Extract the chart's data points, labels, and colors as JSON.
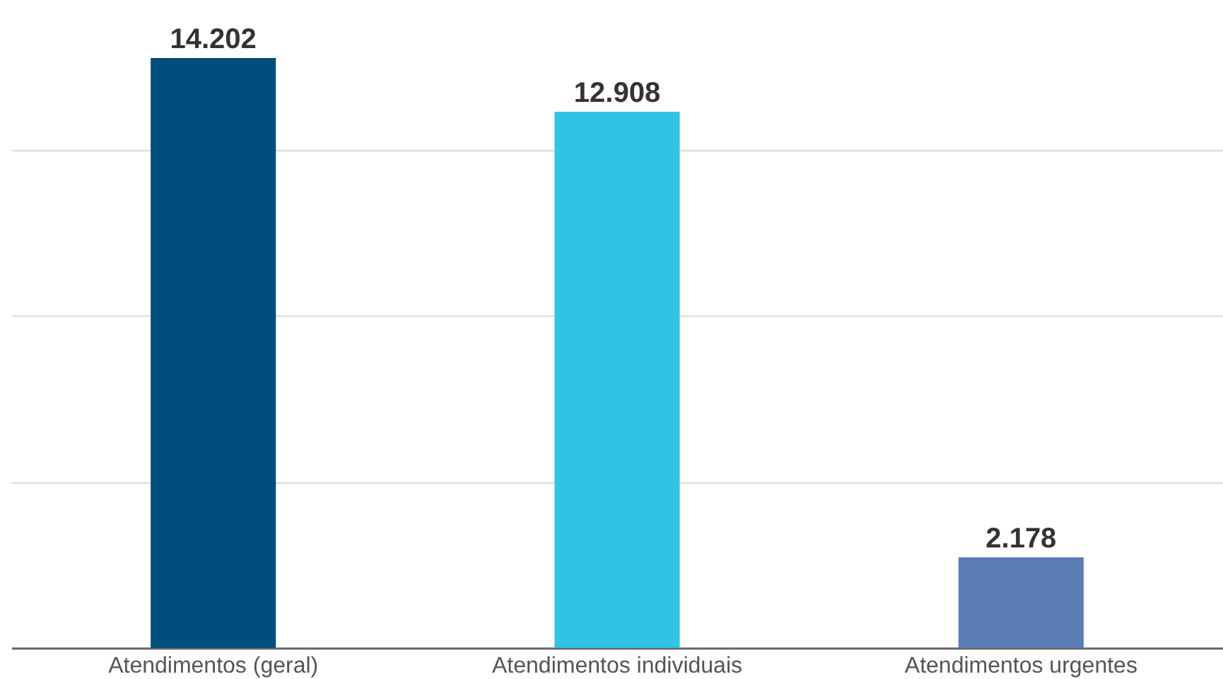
{
  "chart_data": {
    "type": "bar",
    "categories": [
      "Atendimentos (geral)",
      "Atendimentos individuais",
      "Atendimentos urgentes"
    ],
    "values": [
      14202,
      12908,
      2178
    ],
    "colors": [
      "#004e7c",
      "#31c3e3",
      "#5a7db5"
    ],
    "value_labels": [
      "14.202",
      "12.908",
      "2.178"
    ],
    "ylim": [
      0,
      15600
    ],
    "yticks": [
      {
        "value": 0,
        "label": null
      },
      {
        "value": 4000,
        "label": null
      },
      {
        "value": 8000,
        "label": null
      },
      {
        "value": 12000,
        "label": null
      }
    ],
    "grid": "y",
    "tick_labels": "x"
  }
}
